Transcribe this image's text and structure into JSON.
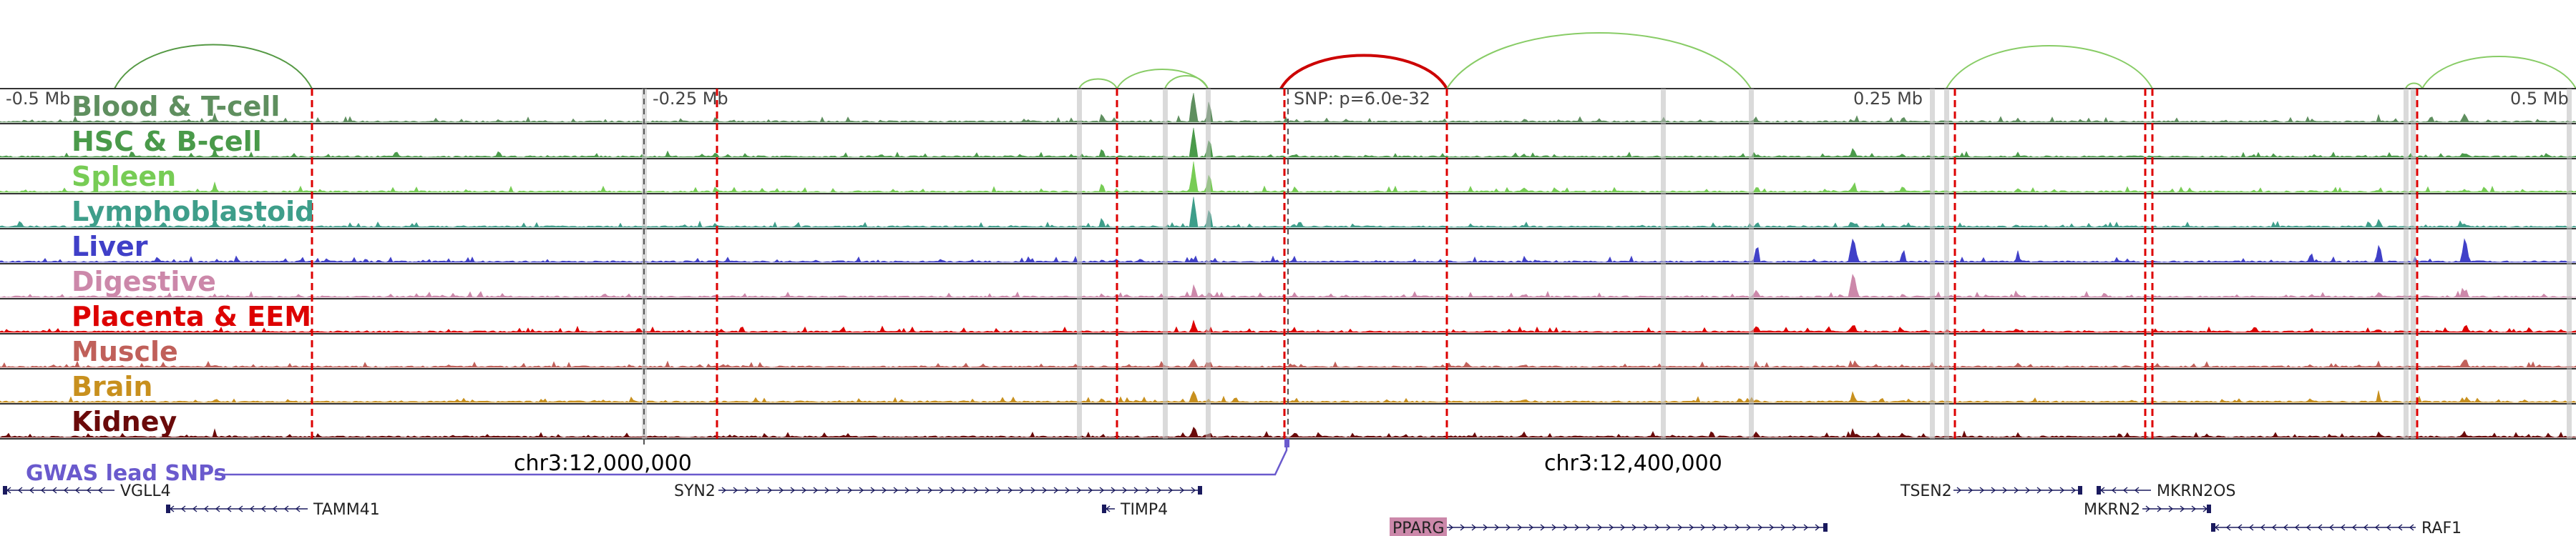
{
  "header": {
    "axis_ticks": [
      {
        "label": "-0.5 Mb",
        "pos": -0.5
      },
      {
        "label": "-0.25 Mb",
        "pos": -0.25
      },
      {
        "label": "SNP: p=6.0e-32",
        "pos": 0
      },
      {
        "label": "0.25 Mb",
        "pos": 0.25
      },
      {
        "label": "0.5 Mb",
        "pos": 0.5
      }
    ]
  },
  "tracks": [
    {
      "label": "Blood & T-cell",
      "color": "#5f8f5f",
      "peak_profile": "blood"
    },
    {
      "label": "HSC & B-cell",
      "color": "#4a9a4a",
      "peak_profile": "hsc"
    },
    {
      "label": "Spleen",
      "color": "#77cc55",
      "peak_profile": "spleen"
    },
    {
      "label": "Lymphoblastoid",
      "color": "#3e9e8a",
      "peak_profile": "lympho"
    },
    {
      "label": "Liver",
      "color": "#4040c8",
      "peak_profile": "liver"
    },
    {
      "label": "Digestive",
      "color": "#cc88aa",
      "peak_profile": "digestive"
    },
    {
      "label": "Placenta & EEM",
      "color": "#dd0000",
      "peak_profile": "placenta"
    },
    {
      "label": "Muscle",
      "color": "#c0605a",
      "peak_profile": "muscle"
    },
    {
      "label": "Brain",
      "color": "#c8901e",
      "peak_profile": "brain"
    },
    {
      "label": "Kidney",
      "color": "#6a0a0a",
      "peak_profile": "kidney"
    }
  ],
  "coordinates": {
    "left": "chr3:12,000,000",
    "right": "chr3:12,400,000"
  },
  "gwas": {
    "label": "GWAS lead SNPs",
    "color": "#6a5acd"
  },
  "genes": [
    {
      "name": "VGLL4",
      "strand": "-",
      "row": 0,
      "highlight": false
    },
    {
      "name": "TAMM41",
      "strand": "-",
      "row": 1,
      "highlight": false
    },
    {
      "name": "SYN2",
      "strand": "+",
      "row": 0,
      "highlight": false
    },
    {
      "name": "TIMP4",
      "strand": "-",
      "row": 1,
      "highlight": false
    },
    {
      "name": "PPARG",
      "strand": "+",
      "row": 2,
      "highlight": true
    },
    {
      "name": "TSEN2",
      "strand": "+",
      "row": 0,
      "highlight": false
    },
    {
      "name": "MKRN2OS",
      "strand": "-",
      "row": 0,
      "highlight": false
    },
    {
      "name": "MKRN2",
      "strand": "+",
      "row": 1,
      "highlight": false
    },
    {
      "name": "RAF1",
      "strand": "-",
      "row": 2,
      "highlight": false
    }
  ],
  "colors": {
    "arc_strong": "#cc0000",
    "arc_light": "#88cc66",
    "arc_dark": "#559944",
    "ref_line": "#dd0000",
    "grey_band": "#bbbbbb",
    "gene_color": "#1a1a5e",
    "pparg_bg": "#cc88aa"
  }
}
